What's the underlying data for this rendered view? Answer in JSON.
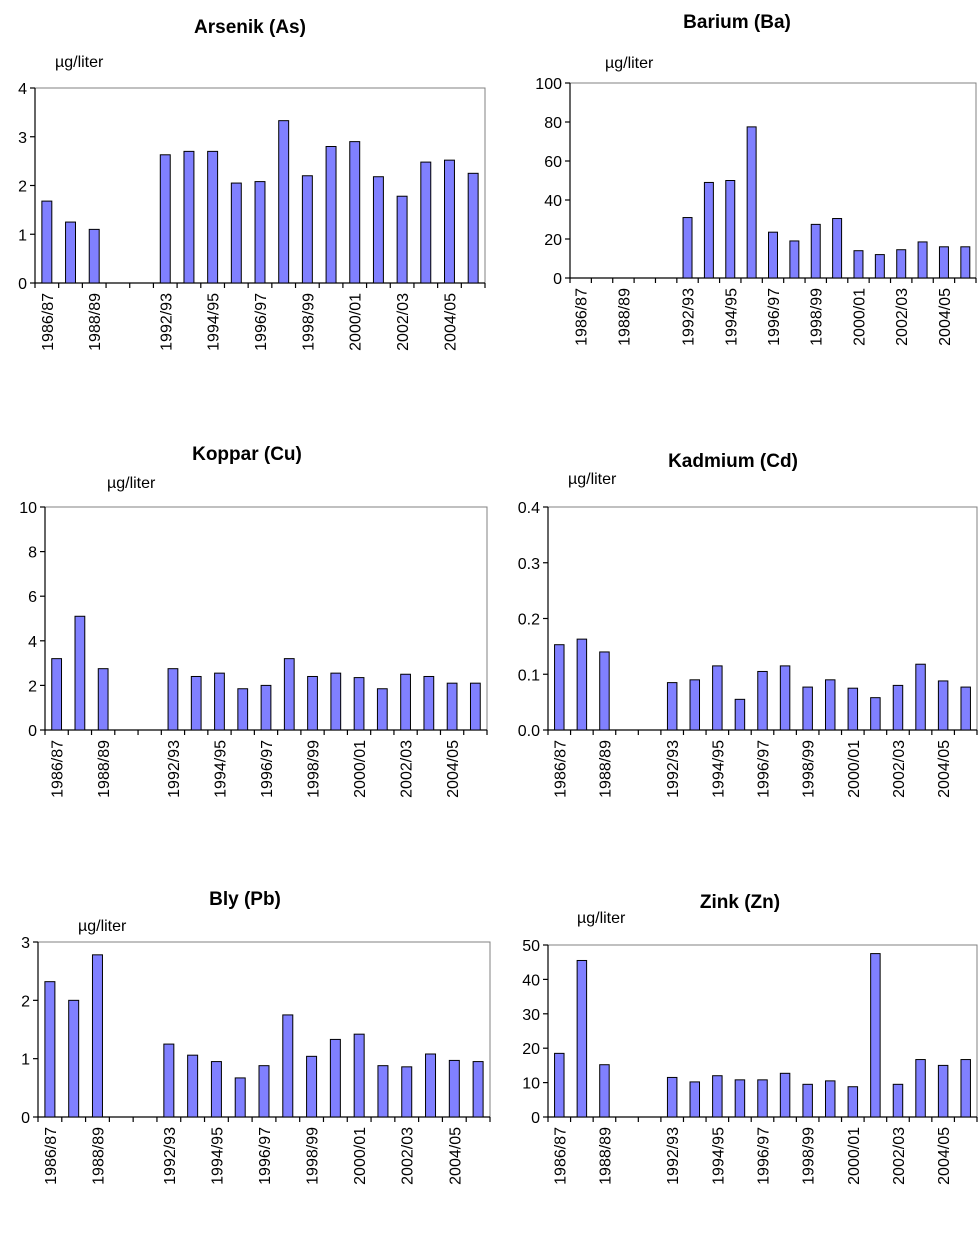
{
  "page": {
    "bar_color": "#8080ff"
  },
  "chart_data": [
    {
      "type": "bar",
      "title": "Arsenik (As)",
      "ylabel": "µg/liter",
      "ylim": [
        0,
        4
      ],
      "yticks": [
        "0",
        "1",
        "2",
        "3",
        "4"
      ],
      "categories": [
        "1986/87",
        "",
        "1988/89",
        "",
        "",
        "1992/93",
        "",
        "1994/95",
        "",
        "1996/97",
        "",
        "1998/99",
        "",
        "2000/01",
        "",
        "2002/03",
        "",
        "2004/05",
        ""
      ],
      "values": [
        1.68,
        1.25,
        1.1,
        null,
        null,
        2.63,
        2.7,
        2.7,
        2.05,
        2.08,
        3.33,
        2.2,
        2.8,
        2.9,
        2.18,
        1.78,
        2.48,
        2.52,
        2.25
      ]
    },
    {
      "type": "bar",
      "title": "Barium (Ba)",
      "ylabel": "µg/liter",
      "ylim": [
        0,
        100
      ],
      "yticks": [
        "0",
        "20",
        "40",
        "60",
        "80",
        "100"
      ],
      "categories": [
        "1986/87",
        "",
        "1988/89",
        "",
        "",
        "1992/93",
        "",
        "1994/95",
        "",
        "1996/97",
        "",
        "1998/99",
        "",
        "2000/01",
        "",
        "2002/03",
        "",
        "2004/05",
        ""
      ],
      "values": [
        null,
        null,
        null,
        null,
        null,
        31,
        49,
        50,
        77.5,
        23.5,
        19,
        27.5,
        30.5,
        14,
        12,
        14.5,
        18.5,
        16,
        16
      ]
    },
    {
      "type": "bar",
      "title": "Koppar (Cu)",
      "ylabel": "µg/liter",
      "ylim": [
        0,
        10
      ],
      "yticks": [
        "0",
        "2",
        "4",
        "6",
        "8",
        "10"
      ],
      "categories": [
        "1986/87",
        "",
        "1988/89",
        "",
        "",
        "1992/93",
        "",
        "1994/95",
        "",
        "1996/97",
        "",
        "1998/99",
        "",
        "2000/01",
        "",
        "2002/03",
        "",
        "2004/05",
        ""
      ],
      "values": [
        3.2,
        5.1,
        2.75,
        null,
        null,
        2.75,
        2.4,
        2.55,
        1.85,
        2.0,
        3.2,
        2.4,
        2.55,
        2.35,
        1.85,
        2.5,
        2.4,
        2.1,
        2.1
      ]
    },
    {
      "type": "bar",
      "title": "Kadmium (Cd)",
      "ylabel": "µg/liter",
      "ylim": [
        0,
        0.4
      ],
      "yticks": [
        "0.0",
        "0.1",
        "0.2",
        "0.3",
        "0.4"
      ],
      "categories": [
        "1986/87",
        "",
        "1988/89",
        "",
        "",
        "1992/93",
        "",
        "1994/95",
        "",
        "1996/97",
        "",
        "1998/99",
        "",
        "2000/01",
        "",
        "2002/03",
        "",
        "2004/05",
        ""
      ],
      "values": [
        0.153,
        0.163,
        0.14,
        null,
        null,
        0.085,
        0.09,
        0.115,
        0.055,
        0.105,
        0.115,
        0.077,
        0.09,
        0.075,
        0.058,
        0.08,
        0.118,
        0.088,
        0.077
      ]
    },
    {
      "type": "bar",
      "title": "Bly (Pb)",
      "ylabel": "µg/liter",
      "ylim": [
        0,
        3
      ],
      "yticks": [
        "0",
        "1",
        "2",
        "3"
      ],
      "categories": [
        "1986/87",
        "",
        "1988/89",
        "",
        "",
        "1992/93",
        "",
        "1994/95",
        "",
        "1996/97",
        "",
        "1998/99",
        "",
        "2000/01",
        "",
        "2002/03",
        "",
        "2004/05",
        ""
      ],
      "values": [
        2.32,
        2.0,
        2.78,
        null,
        null,
        1.25,
        1.06,
        0.95,
        0.67,
        0.88,
        1.75,
        1.04,
        1.33,
        1.42,
        0.88,
        0.86,
        1.08,
        0.97,
        0.95
      ]
    },
    {
      "type": "bar",
      "title": "Zink (Zn)",
      "ylabel": "µg/liter",
      "ylim": [
        0,
        50
      ],
      "yticks": [
        "0",
        "10",
        "20",
        "30",
        "40",
        "50"
      ],
      "categories": [
        "1986/87",
        "",
        "1988/89",
        "",
        "",
        "1992/93",
        "",
        "1994/95",
        "",
        "1996/97",
        "",
        "1998/99",
        "",
        "2000/01",
        "",
        "2002/03",
        "",
        "2004/05",
        ""
      ],
      "values": [
        18.5,
        45.5,
        15.2,
        null,
        null,
        11.5,
        10.2,
        12,
        10.8,
        10.8,
        12.7,
        9.5,
        10.5,
        8.8,
        47.5,
        9.5,
        16.7,
        15,
        16.7
      ]
    }
  ]
}
